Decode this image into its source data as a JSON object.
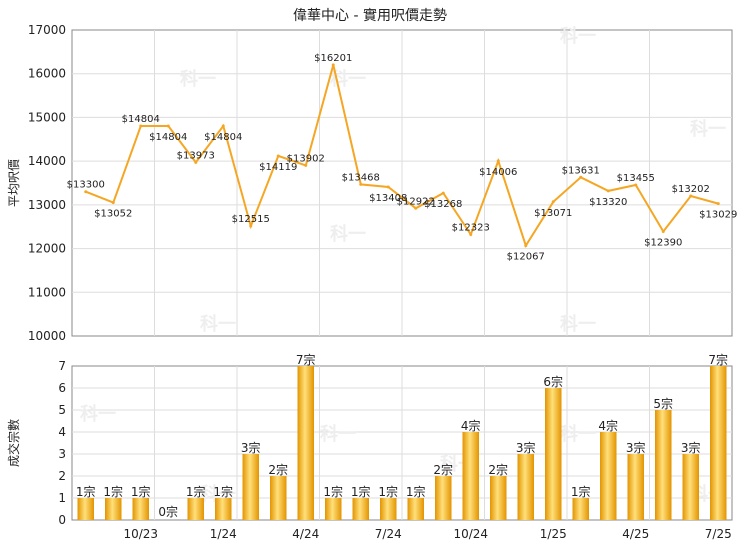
{
  "title": "偉華中心 - 實用呎價走勢",
  "colors": {
    "line": "#f5a623",
    "bar_light": "#ffe28a",
    "bar_dark": "#e59a00",
    "grid": "#dddddd",
    "axis": "#888888"
  },
  "watermark": "科一",
  "chart_data": [
    {
      "type": "line",
      "ylabel": "平均呎價",
      "ylim": [
        10000,
        17000
      ],
      "yticks": [
        "10000",
        "11000",
        "12000",
        "13000",
        "14000",
        "15000",
        "16000",
        "17000"
      ],
      "values": [
        13300,
        13052,
        14804,
        14804,
        13973,
        14804,
        12515,
        14119,
        13902,
        16201,
        13468,
        13408,
        12922,
        13268,
        12323,
        14006,
        12067,
        13071,
        13631,
        13320,
        13455,
        12390,
        13202,
        13029
      ],
      "value_labels": [
        "$13300",
        "$13052",
        "$14804",
        "$14804",
        "$13973",
        "$14804",
        "$12515",
        "$14119",
        "$13902",
        "$16201",
        "$13468",
        "$13408",
        "$12922",
        "$13268",
        "$12323",
        "$14006",
        "$12067",
        "$13071",
        "$13631",
        "$13320",
        "$13455",
        "$12390",
        "$13202",
        "$13029"
      ]
    },
    {
      "type": "bar",
      "ylabel": "成交宗數",
      "ylim": [
        0,
        7
      ],
      "yticks": [
        "0",
        "1",
        "2",
        "3",
        "4",
        "5",
        "6",
        "7"
      ],
      "values": [
        1,
        1,
        1,
        0,
        1,
        1,
        3,
        2,
        7,
        1,
        1,
        1,
        1,
        2,
        4,
        2,
        3,
        6,
        1,
        4,
        3,
        5,
        3,
        7
      ],
      "value_labels": [
        "1宗",
        "1宗",
        "1宗",
        "0宗",
        "1宗",
        "1宗",
        "3宗",
        "2宗",
        "7宗",
        "1宗",
        "1宗",
        "1宗",
        "1宗",
        "2宗",
        "4宗",
        "2宗",
        "3宗",
        "6宗",
        "1宗",
        "4宗",
        "3宗",
        "5宗",
        "3宗",
        "7宗"
      ],
      "xtick_labels": [
        "10/23",
        "1/24",
        "4/24",
        "7/24",
        "10/24",
        "1/25",
        "4/25",
        "7/25"
      ]
    }
  ]
}
